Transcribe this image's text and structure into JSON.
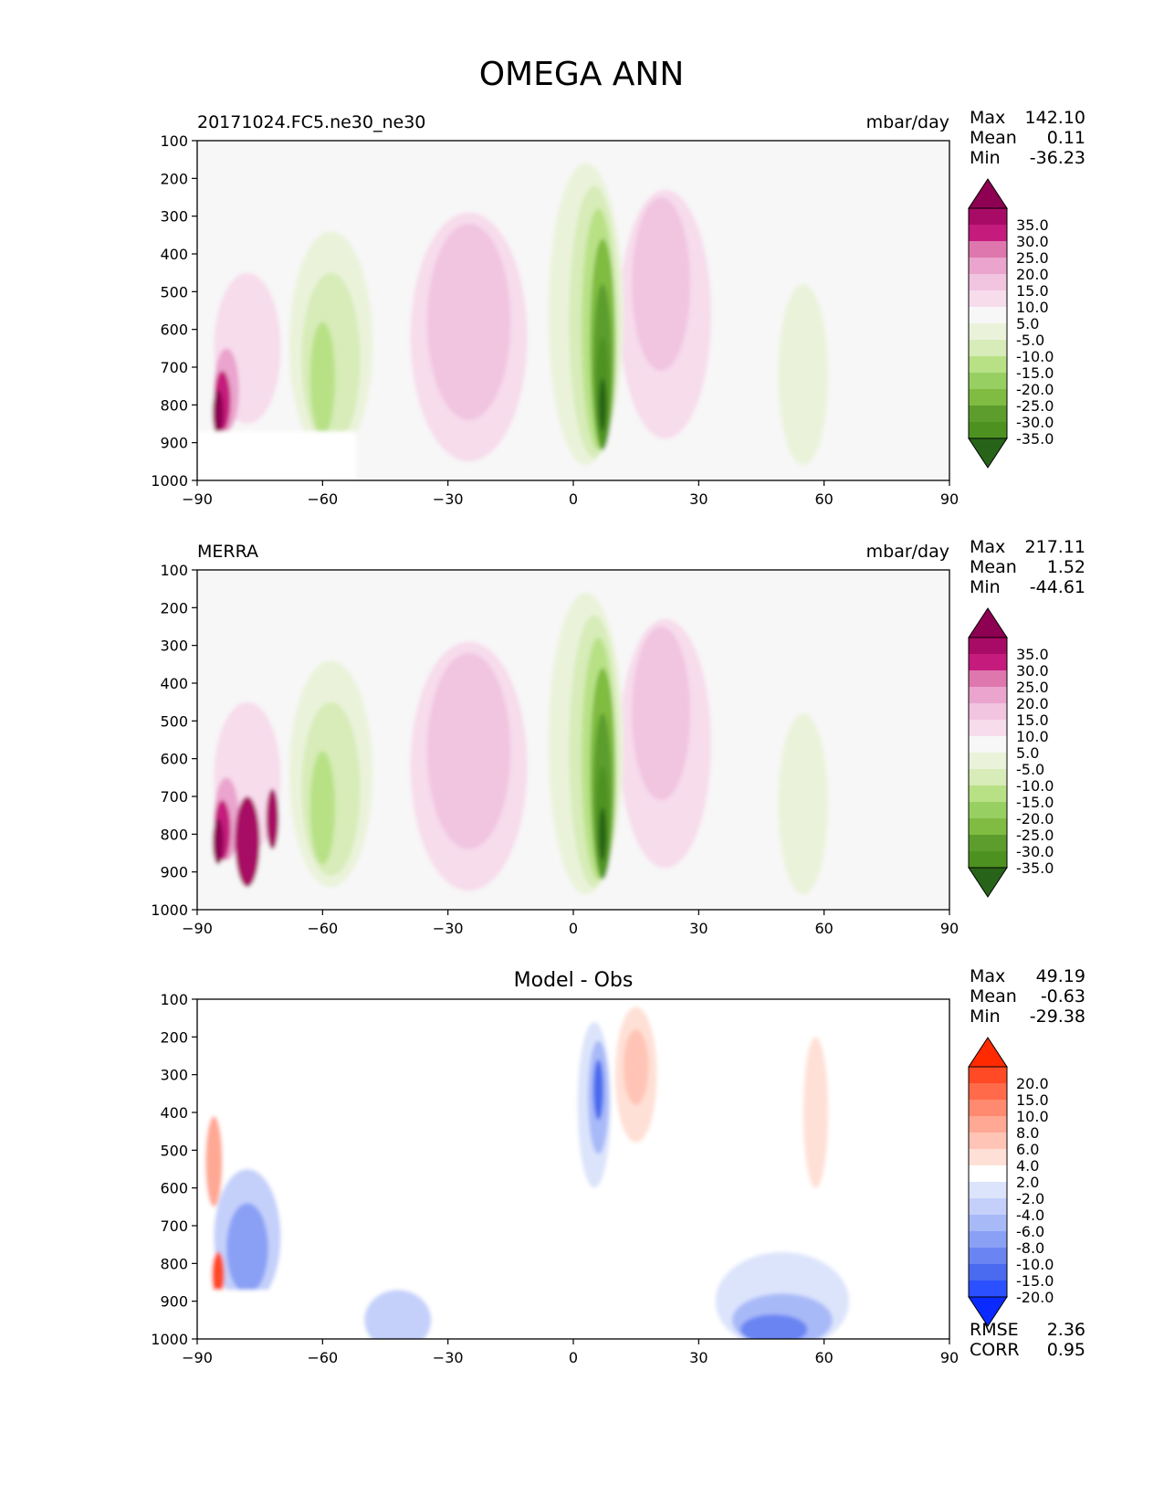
{
  "figure_title": "OMEGA ANN",
  "chart_data": [
    {
      "type": "heatmap",
      "subtype": "filled-contour",
      "title": "20171024.FC5.ne30_ne30",
      "units": "mbar/day",
      "xlabel": "",
      "ylabel": "",
      "xlim": [
        -90,
        90
      ],
      "ylim": [
        1000,
        100
      ],
      "x_ticks": [
        "−90",
        "−60",
        "−30",
        "0",
        "30",
        "60",
        "90"
      ],
      "y_ticks": [
        "100",
        "200",
        "300",
        "400",
        "500",
        "600",
        "700",
        "800",
        "900",
        "1000"
      ],
      "stats": {
        "max_label": "Max",
        "max": "142.10",
        "mean_label": "Mean",
        "mean": "0.11",
        "min_label": "Min",
        "min": "-36.23"
      },
      "colorbar": {
        "levels": [
          "35.0",
          "30.0",
          "25.0",
          "20.0",
          "15.0",
          "10.0",
          "5.0",
          "-5.0",
          "-10.0",
          "-15.0",
          "-20.0",
          "-25.0",
          "-30.0",
          "-35.0"
        ],
        "colors": [
          "#8e0152",
          "#a80b65",
          "#c51b7d",
          "#de77ae",
          "#eaa4cd",
          "#f1c4e0",
          "#f7dcec",
          "#f7f7f7",
          "#eaf3da",
          "#d7ecb8",
          "#b8e186",
          "#98cf62",
          "#7fbc41",
          "#5c9d2d",
          "#4d9221",
          "#276419"
        ]
      },
      "features": [
        {
          "desc": "ascent (negative) max",
          "lat": 7,
          "p": 820,
          "value": -36
        },
        {
          "desc": "descent (positive) band",
          "lat": -25,
          "p": 600,
          "value": 12
        },
        {
          "desc": "descent (positive) band",
          "lat": 22,
          "p": 500,
          "value": 12
        },
        {
          "desc": "ascent band",
          "lat": -58,
          "p": 600,
          "value": -15
        },
        {
          "desc": "strong descent near Antarctica",
          "lat": -84,
          "p": 800,
          "value": 142
        }
      ]
    },
    {
      "type": "heatmap",
      "subtype": "filled-contour",
      "title": "MERRA",
      "units": "mbar/day",
      "xlabel": "",
      "ylabel": "",
      "xlim": [
        -90,
        90
      ],
      "ylim": [
        1000,
        100
      ],
      "x_ticks": [
        "−90",
        "−60",
        "−30",
        "0",
        "30",
        "60",
        "90"
      ],
      "y_ticks": [
        "100",
        "200",
        "300",
        "400",
        "500",
        "600",
        "700",
        "800",
        "900",
        "1000"
      ],
      "stats": {
        "max_label": "Max",
        "max": "217.11",
        "mean_label": "Mean",
        "mean": "1.52",
        "min_label": "Min",
        "min": "-44.61"
      },
      "colorbar": {
        "levels": [
          "35.0",
          "30.0",
          "25.0",
          "20.0",
          "15.0",
          "10.0",
          "5.0",
          "-5.0",
          "-10.0",
          "-15.0",
          "-20.0",
          "-25.0",
          "-30.0",
          "-35.0"
        ],
        "colors": [
          "#8e0152",
          "#a80b65",
          "#c51b7d",
          "#de77ae",
          "#eaa4cd",
          "#f1c4e0",
          "#f7dcec",
          "#f7f7f7",
          "#eaf3da",
          "#d7ecb8",
          "#b8e186",
          "#98cf62",
          "#7fbc41",
          "#5c9d2d",
          "#4d9221",
          "#276419"
        ]
      },
      "features": [
        {
          "desc": "ascent max",
          "lat": 6,
          "p": 800,
          "value": -44
        },
        {
          "desc": "descent band",
          "lat": -25,
          "p": 650,
          "value": 12
        },
        {
          "desc": "descent band",
          "lat": 20,
          "p": 450,
          "value": 15
        },
        {
          "desc": "ascent band",
          "lat": -60,
          "p": 650,
          "value": -15
        },
        {
          "desc": "strong descent near Antarctica",
          "lat": -83,
          "p": 800,
          "value": 217
        }
      ]
    },
    {
      "type": "heatmap",
      "subtype": "filled-contour",
      "title": "Model - Obs",
      "units": "",
      "xlabel": "",
      "ylabel": "",
      "xlim": [
        -90,
        90
      ],
      "ylim": [
        1000,
        100
      ],
      "x_ticks": [
        "−90",
        "−60",
        "−30",
        "0",
        "30",
        "60",
        "90"
      ],
      "y_ticks": [
        "100",
        "200",
        "300",
        "400",
        "500",
        "600",
        "700",
        "800",
        "900",
        "1000"
      ],
      "stats": {
        "max_label": "Max",
        "max": "49.19",
        "mean_label": "Mean",
        "mean": "-0.63",
        "min_label": "Min",
        "min": "-29.38"
      },
      "rmse_label": "RMSE",
      "rmse": "2.36",
      "corr_label": "CORR",
      "corr": "0.95",
      "colorbar": {
        "levels": [
          "20.0",
          "15.0",
          "10.0",
          "8.0",
          "6.0",
          "4.0",
          "2.0",
          "-2.0",
          "-4.0",
          "-6.0",
          "-8.0",
          "-10.0",
          "-15.0",
          "-20.0"
        ],
        "colors": [
          "#ff2a00",
          "#ff4a25",
          "#ff6a4a",
          "#ff8a70",
          "#ffa894",
          "#ffc4b5",
          "#ffe0d6",
          "#ffffff",
          "#dce4fb",
          "#c4d0fa",
          "#a8b9f8",
          "#8aa0f5",
          "#6a85f2",
          "#4a6aef",
          "#2a50ff",
          "#0a2aff"
        ]
      },
      "features": [
        {
          "desc": "negative diff max",
          "lat": 5,
          "p": 350,
          "value": -20
        },
        {
          "desc": "positive diff",
          "lat": 15,
          "p": 300,
          "value": 8
        },
        {
          "desc": "negative diff near surface",
          "lat": 50,
          "p": 950,
          "value": -10
        },
        {
          "desc": "mixed diff near Antarctica",
          "lat": -78,
          "p": 750,
          "value": -15
        }
      ]
    }
  ]
}
